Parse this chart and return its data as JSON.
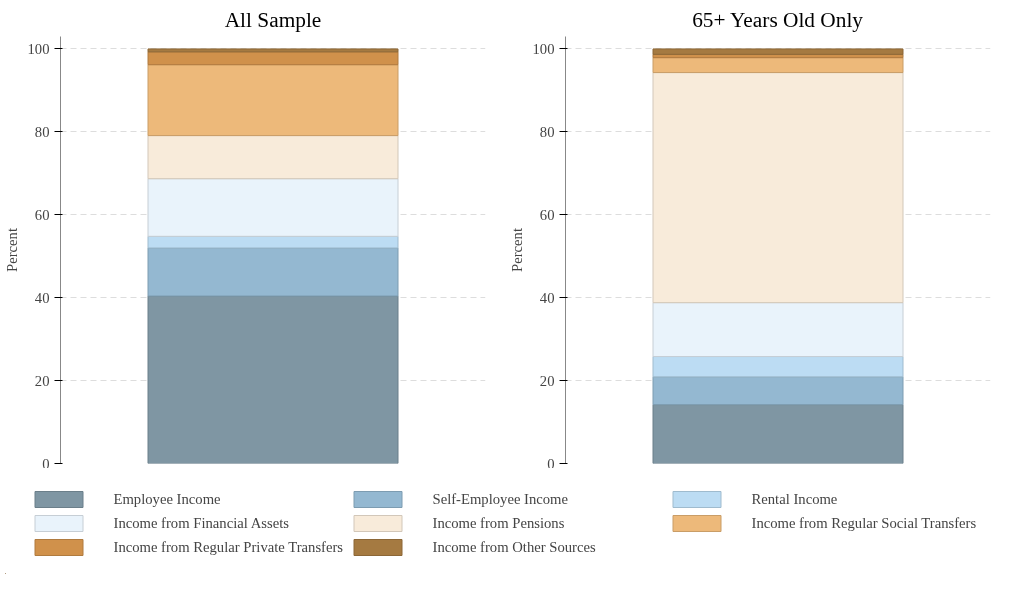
{
  "chart_data": [
    {
      "type": "bar",
      "stacked": true,
      "title": "All Sample",
      "ylabel": "Percent",
      "categories": [
        null
      ],
      "ylim": [
        0,
        103
      ],
      "yticks": [
        0,
        20,
        40,
        60,
        80,
        100
      ],
      "grid": "y",
      "legend": "bottom",
      "series": [
        {
          "name": "Employee Income",
          "color": "#7f96a3",
          "values": [
            40.4
          ]
        },
        {
          "name": "Self-Employee Income",
          "color": "#94b8d1",
          "values": [
            11.6
          ]
        },
        {
          "name": "Rental Income",
          "color": "#bcdcf3",
          "values": [
            2.8
          ]
        },
        {
          "name": "Income from Financial Assets",
          "color": "#e9f3fb",
          "values": [
            13.9
          ]
        },
        {
          "name": "Income from Pensions",
          "color": "#f8ebda",
          "values": [
            10.4
          ]
        },
        {
          "name": "Income from Regular Social Transfers",
          "color": "#edb97a",
          "values": [
            17.1
          ]
        },
        {
          "name": "Income from Regular Private Transfers",
          "color": "#d0914b",
          "values": [
            3.1
          ]
        },
        {
          "name": "Income from Other Sources",
          "color": "#a57a41",
          "values": [
            0.7
          ]
        }
      ]
    },
    {
      "type": "bar",
      "stacked": true,
      "title": "65+ Years Old Only",
      "ylabel": "Percent",
      "categories": [
        null
      ],
      "ylim": [
        0,
        103
      ],
      "yticks": [
        0,
        20,
        40,
        60,
        80,
        100
      ],
      "grid": "y",
      "series": [
        {
          "color": "#7f96a3",
          "values": [
            14.2
          ]
        },
        {
          "color": "#94b8d1",
          "values": [
            6.7
          ]
        },
        {
          "color": "#bcdcf3",
          "values": [
            4.9
          ]
        },
        {
          "color": "#e9f3fb",
          "values": [
            13.0
          ]
        },
        {
          "color": "#f8ebda",
          "values": [
            55.5
          ]
        },
        {
          "color": "#edb97a",
          "values": [
            3.6
          ]
        },
        {
          "color": "#d0914b",
          "values": [
            0.8
          ]
        },
        {
          "color": "#a57a41",
          "values": [
            1.3
          ]
        }
      ]
    }
  ]
}
